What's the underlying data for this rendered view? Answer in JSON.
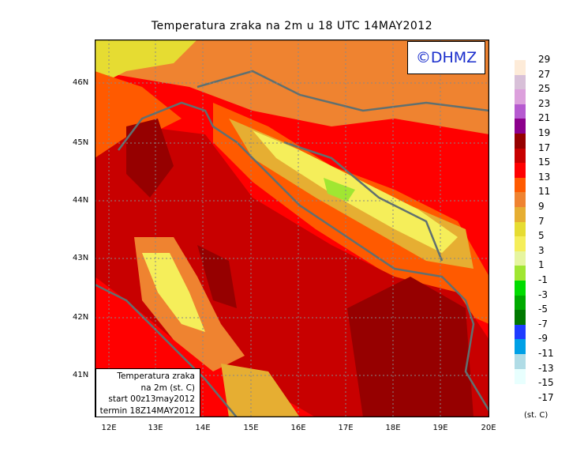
{
  "title": "Temperatura zraka na 2m u 18 UTC 14MAY2012",
  "logo": "©DHMZ",
  "info_box": [
    "Temperatura zraka",
    "na 2m (st. C)",
    "start 00z13may2012",
    "termin 18Z14MAY2012"
  ],
  "lat_labels": [
    "46N",
    "45N",
    "44N",
    "43N",
    "42N",
    "41N"
  ],
  "lon_labels": [
    "12E",
    "13E",
    "14E",
    "15E",
    "16E",
    "17E",
    "18E",
    "19E",
    "20E"
  ],
  "legend": {
    "unit": "(st. C)",
    "levels": [
      "29",
      "27",
      "25",
      "23",
      "21",
      "19",
      "17",
      "15",
      "13",
      "11",
      "9",
      "7",
      "5",
      "3",
      "1",
      "-1",
      "-3",
      "-5",
      "-7",
      "-9",
      "-11",
      "-13",
      "-15",
      "-17"
    ],
    "colors": [
      "#fdebd8",
      "#d8c0d8",
      "#dca0dc",
      "#b65ad0",
      "#8c008c",
      "#960000",
      "#c80000",
      "#ff0000",
      "#ff5a00",
      "#ef8330",
      "#e6ae32",
      "#e6dc32",
      "#f5ee5a",
      "#e6f5a0",
      "#a0e632",
      "#00dc00",
      "#00aa00",
      "#007800",
      "#1e3cff",
      "#00a0e6",
      "#b0dce6",
      "#e8fffe"
    ]
  }
}
